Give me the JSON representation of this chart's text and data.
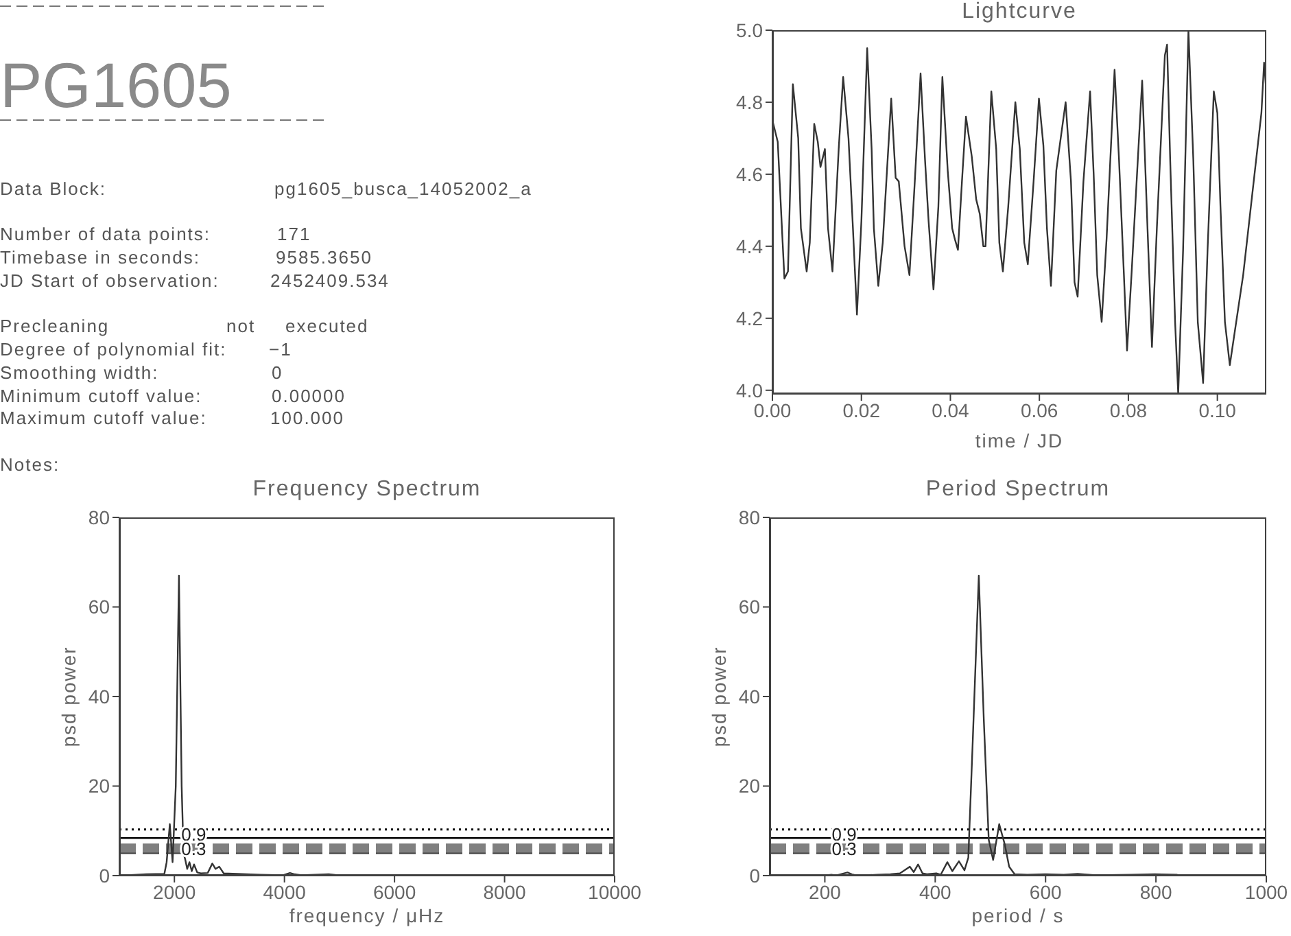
{
  "chart_data": [
    {
      "type": "other",
      "title": "PG1605",
      "annotations": [
        "Data Block:",
        "pg1605_busca_14052002_a",
        "Number of data points:",
        "171",
        "Timebase in seconds:",
        "9585.3650",
        "JD Start of observation:",
        "2452409.534",
        "Precleaning",
        "not",
        "executed",
        "Degree of polynomial fit:",
        "−1",
        "Smoothing width:",
        "0",
        "Minimum cutoff value:",
        "0.00000",
        "Maximum cutoff value:",
        "100.000",
        "Notes:"
      ]
    },
    {
      "type": "line",
      "title": "Lightcurve",
      "xlabel": "time / JD",
      "color": "#333333",
      "x": [
        0,
        0.0012,
        0.0023,
        0.0027,
        0.0035,
        0.0046,
        0.0058,
        0.0064,
        0.0077,
        0.0084,
        0.0094,
        0.0102,
        0.0108,
        0.0118,
        0.0125,
        0.0135,
        0.0149,
        0.0159,
        0.0171,
        0.0181,
        0.019,
        0.02,
        0.0213,
        0.0223,
        0.0228,
        0.0238,
        0.0248,
        0.0267,
        0.0277,
        0.0284,
        0.0297,
        0.0308,
        0.032,
        0.0333,
        0.0343,
        0.0351,
        0.0362,
        0.0373,
        0.0382,
        0.0394,
        0.0404,
        0.041,
        0.0417,
        0.0426,
        0.0435,
        0.0448,
        0.0458,
        0.0466,
        0.0474,
        0.0479,
        0.0492,
        0.0503,
        0.051,
        0.0518,
        0.053,
        0.0546,
        0.0556,
        0.0566,
        0.0574,
        0.0587,
        0.0599,
        0.0609,
        0.0617,
        0.0626,
        0.0638,
        0.0659,
        0.0671,
        0.0679,
        0.0686,
        0.0699,
        0.0714,
        0.0722,
        0.073,
        0.074,
        0.0751,
        0.0769,
        0.0779,
        0.079,
        0.0797,
        0.0807,
        0.0831,
        0.0843,
        0.0853,
        0.0864,
        0.0882,
        0.0887,
        0.0894,
        0.0905,
        0.0912,
        0.0923,
        0.0935,
        0.0946,
        0.0956,
        0.0968,
        0.0978,
        0.0992,
        0.1,
        0.1007,
        0.1017,
        0.1028,
        0.1058,
        0.1099,
        0.1105,
        0.111
      ],
      "values": [
        4.75,
        4.69,
        4.41,
        4.31,
        4.33,
        4.85,
        4.7,
        4.45,
        4.33,
        4.41,
        4.74,
        4.69,
        4.62,
        4.67,
        4.45,
        4.33,
        4.67,
        4.87,
        4.7,
        4.45,
        4.21,
        4.47,
        4.95,
        4.67,
        4.45,
        4.29,
        4.41,
        4.81,
        4.59,
        4.58,
        4.4,
        4.32,
        4.58,
        4.88,
        4.64,
        4.47,
        4.28,
        4.51,
        4.87,
        4.61,
        4.45,
        4.42,
        4.39,
        4.58,
        4.76,
        4.65,
        4.53,
        4.49,
        4.4,
        4.4,
        4.83,
        4.67,
        4.41,
        4.33,
        4.51,
        4.8,
        4.67,
        4.41,
        4.35,
        4.58,
        4.81,
        4.68,
        4.45,
        4.29,
        4.61,
        4.8,
        4.58,
        4.3,
        4.26,
        4.58,
        4.83,
        4.6,
        4.32,
        4.19,
        4.42,
        4.89,
        4.64,
        4.32,
        4.11,
        4.32,
        4.86,
        4.45,
        4.12,
        4.45,
        4.93,
        4.96,
        4.64,
        4.19,
        3.99,
        4.39,
        5.0,
        4.64,
        4.19,
        4.02,
        4.39,
        4.83,
        4.77,
        4.51,
        4.19,
        4.07,
        4.32,
        4.77,
        4.91,
        4.83
      ],
      "xlim": [
        0,
        0.111
      ],
      "ylim": [
        3.99,
        5.0
      ],
      "xticks": [
        {
          "value": 0,
          "label": "0.00"
        },
        {
          "value": 0.02,
          "label": "0.02"
        },
        {
          "value": 0.04,
          "label": "0.04"
        },
        {
          "value": 0.06,
          "label": "0.06"
        },
        {
          "value": 0.08,
          "label": "0.08"
        },
        {
          "value": 0.1,
          "label": "0.10"
        }
      ],
      "yticks": [
        {
          "value": 4,
          "label": "4.0"
        },
        {
          "value": 4.2,
          "label": "4.2"
        },
        {
          "value": 4.4,
          "label": "4.4"
        },
        {
          "value": 4.6,
          "label": "4.6"
        },
        {
          "value": 4.8,
          "label": "4.8"
        },
        {
          "value": 5,
          "label": "5.0"
        }
      ]
    },
    {
      "type": "line",
      "title": "Frequency Spectrum",
      "xlabel": "frequency / μHz",
      "ylabel": "psd power",
      "color": "#333333",
      "x": [
        1150,
        1486,
        1818,
        1859,
        1917,
        1967,
        2025,
        2083,
        2132,
        2166,
        2199,
        2233,
        2274,
        2316,
        2357,
        2415,
        2481,
        2606,
        2689,
        2747,
        2814,
        2897,
        3146,
        3560,
        3975,
        4100,
        4183,
        4307,
        4805,
        4971
      ],
      "values": [
        0.1,
        0.3,
        0.4,
        3,
        11.5,
        3,
        20,
        67,
        20,
        5,
        3.5,
        1.5,
        3,
        1,
        2.5,
        0.7,
        0.5,
        0.6,
        2.7,
        1.5,
        2,
        0.5,
        0.4,
        0.2,
        0.1,
        0.6,
        0.3,
        0.1,
        0.3,
        0.1
      ],
      "xlim": [
        1000,
        10000
      ],
      "ylim": [
        0,
        80
      ],
      "xticks": [
        2000,
        4000,
        6000,
        8000,
        10000
      ],
      "yticks": [
        0,
        20,
        40,
        60,
        80
      ],
      "ref_lines": [
        {
          "axis": "y",
          "value": 10.3,
          "color": "#000000",
          "line_style": "dotted"
        },
        {
          "axis": "y",
          "value": 8.4,
          "color": "#000000",
          "line_style": "solid"
        },
        {
          "axis": "y",
          "value": 6.1,
          "color": "#808080",
          "line_style": "dashed"
        },
        {
          "axis": "y",
          "value": 5.0,
          "color": "#404040",
          "line_style": "dashed"
        }
      ],
      "annotations": [
        {
          "text": "0.9",
          "y": 9.4
        },
        {
          "text": "0.3",
          "y": 6.2
        }
      ]
    },
    {
      "type": "line",
      "title": "Period Spectrum",
      "xlabel": "period / s",
      "ylabel": "psd power",
      "color": "#333333",
      "x": [
        204,
        212,
        220,
        241,
        249,
        258,
        295,
        319,
        336,
        348,
        354,
        361,
        369,
        377,
        385,
        402,
        410,
        422,
        431,
        443,
        453,
        460,
        468,
        479,
        488,
        497,
        505,
        516,
        526,
        534,
        544,
        567,
        600,
        633,
        658,
        691,
        756,
        798,
        839
      ],
      "values": [
        0.1,
        0.2,
        0,
        0.7,
        0.3,
        0,
        0.2,
        0.3,
        0.5,
        1.5,
        2,
        0.8,
        2.5,
        0.5,
        0.3,
        0.5,
        0.2,
        3,
        1,
        3.2,
        1.2,
        4,
        30,
        67,
        35,
        8,
        3.5,
        11.5,
        7,
        2,
        0.3,
        0.2,
        0.3,
        0.2,
        0.4,
        0.1,
        0.2,
        0.3,
        0.2
      ],
      "xlim": [
        100,
        1000
      ],
      "ylim": [
        0,
        80
      ],
      "xticks": [
        200,
        400,
        600,
        800,
        1000
      ],
      "yticks": [
        0,
        20,
        40,
        60,
        80
      ],
      "ref_lines": [
        {
          "axis": "y",
          "value": 10.3,
          "color": "#000000",
          "line_style": "dotted"
        },
        {
          "axis": "y",
          "value": 8.4,
          "color": "#000000",
          "line_style": "solid"
        },
        {
          "axis": "y",
          "value": 6.1,
          "color": "#808080",
          "line_style": "dashed"
        },
        {
          "axis": "y",
          "value": 5.0,
          "color": "#404040",
          "line_style": "dashed"
        }
      ],
      "annotations": [
        {
          "text": "0.9",
          "y": 9.4
        },
        {
          "text": "0.3",
          "y": 6.2
        }
      ]
    }
  ]
}
